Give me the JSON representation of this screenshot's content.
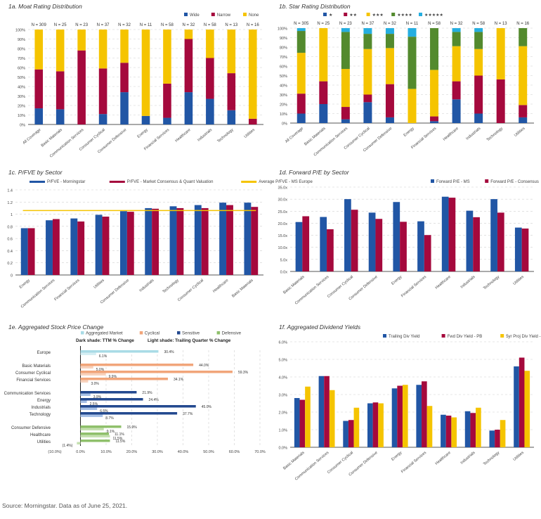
{
  "footer": "Source: Morningstar. Data as of June 25, 2021.",
  "colors": {
    "blue": "#2156a5",
    "red": "#a5093d",
    "yellow": "#f5c400",
    "green": "#538a2e",
    "cyan": "#25aee0",
    "ltblue": "#a9dbe6",
    "orange": "#f1a57a",
    "navy": "#23498f",
    "ltnavy": "#a6c0e6",
    "dgreen": "#8fc06b",
    "lgreen": "#c5e0b0",
    "grid": "#d0d0d0",
    "axis": "#777777"
  },
  "chart_data": [
    {
      "id": "1a",
      "type": "bar",
      "stacked": true,
      "title": "1a. Moat Rating Distribution",
      "categories": [
        "All Coverage",
        "Basic Materials",
        "Communication Services",
        "Consumer Cyclical",
        "Consumer Defensive",
        "Energy",
        "Financial Services",
        "Healthcare",
        "Industrials",
        "Technology",
        "Utilities"
      ],
      "n_labels": [
        "N = 309",
        "N = 25",
        "N = 23",
        "N = 37",
        "N = 32",
        "N = 11",
        "N = 58",
        "N = 32",
        "N = 58",
        "N = 13",
        "N = 16"
      ],
      "series": [
        {
          "name": "Wide",
          "color": "#2156a5",
          "values": [
            17,
            16,
            0,
            11,
            34,
            9,
            7,
            34,
            27,
            15,
            0
          ]
        },
        {
          "name": "Narrow",
          "color": "#a5093d",
          "values": [
            41,
            40,
            78,
            48,
            31,
            0,
            36,
            56,
            43,
            39,
            6
          ]
        },
        {
          "name": "None",
          "color": "#f5c400",
          "values": [
            42,
            44,
            22,
            41,
            35,
            91,
            57,
            10,
            30,
            46,
            94
          ]
        }
      ],
      "yticks": [
        "0%",
        "10%",
        "20%",
        "30%",
        "40%",
        "50%",
        "60%",
        "70%",
        "80%",
        "90%",
        "100%"
      ],
      "ylim": [
        0,
        100
      ],
      "legend": "top-right"
    },
    {
      "id": "1b",
      "type": "bar",
      "stacked": true,
      "title": "1b. Star Rating Distribution",
      "categories": [
        "All Coverage",
        "Basic Materials",
        "Communication Services",
        "Consumer Cyclical",
        "Consumer Defensive",
        "Energy",
        "Financial Services",
        "Healthcare",
        "Industrials",
        "Technology",
        "Utilities"
      ],
      "n_labels": [
        "N = 305",
        "N = 25",
        "N = 23",
        "N = 37",
        "N = 32",
        "N = 11",
        "N = 58",
        "N = 32",
        "N = 58",
        "N = 13",
        "N = 16"
      ],
      "series": [
        {
          "name": "★",
          "color": "#2156a5",
          "values": [
            10,
            20,
            4,
            22,
            6,
            0,
            2,
            25,
            10,
            0,
            6
          ]
        },
        {
          "name": "★★",
          "color": "#a5093d",
          "values": [
            21,
            24,
            13,
            8,
            35,
            0,
            5,
            19,
            40,
            46,
            13
          ]
        },
        {
          "name": "★★★",
          "color": "#f5c400",
          "values": [
            43,
            56,
            40,
            48,
            38,
            36,
            49,
            37,
            28,
            54,
            62
          ]
        },
        {
          "name": "★★★★",
          "color": "#538a2e",
          "values": [
            23,
            0,
            39,
            16,
            15,
            55,
            44,
            15,
            18,
            0,
            19
          ]
        },
        {
          "name": "★★★★★",
          "color": "#25aee0",
          "values": [
            3,
            0,
            4,
            6,
            6,
            9,
            0,
            4,
            4,
            0,
            0
          ]
        }
      ],
      "yticks": [
        "0%",
        "10%",
        "20%",
        "30%",
        "40%",
        "50%",
        "60%",
        "70%",
        "80%",
        "90%",
        "100%"
      ],
      "ylim": [
        0,
        100
      ],
      "legend": "top"
    },
    {
      "id": "1c",
      "type": "bar",
      "title": "1c. P/FVE by Sector",
      "categories": [
        "Energy",
        "Communication Services",
        "Financial Services",
        "Utilities",
        "Consumer Defensive",
        "Industrials",
        "Technology",
        "Consumer Cyclical",
        "Healthcare",
        "Basic Materials"
      ],
      "series": [
        {
          "name": "P/FVE - Morningstar",
          "color": "#2156a5",
          "values": [
            0.77,
            0.9,
            0.93,
            0.99,
            1.05,
            1.1,
            1.13,
            1.15,
            1.19,
            1.19
          ]
        },
        {
          "name": "P/FVE - Market Consensus & Quant Valuation",
          "color": "#a5093d",
          "values": [
            0.77,
            0.92,
            0.88,
            0.96,
            1.04,
            1.09,
            1.1,
            1.1,
            1.15,
            1.12
          ]
        }
      ],
      "reference_line": {
        "name": "Average P/FVE - MS Europe",
        "color": "#f5c400",
        "value": 1.06
      },
      "yticks": [
        "0",
        "0.2",
        "0.4",
        "0.6",
        "0.8",
        "1",
        "1.2",
        "1.4"
      ],
      "ylim": [
        0,
        1.4
      ],
      "legend": "top"
    },
    {
      "id": "1d",
      "type": "bar",
      "title": "1d. Forward P/E by Sector",
      "categories": [
        "Basic Materials",
        "Communication Services",
        "Consumer Cyclical",
        "Consumer Defensive",
        "Energy",
        "Financial Services",
        "Healthcare",
        "Industrials",
        "Technology",
        "Utilities"
      ],
      "series": [
        {
          "name": "Forward P/E - MS",
          "color": "#2156a5",
          "values": [
            20.5,
            22.6,
            30.0,
            24.4,
            28.8,
            20.8,
            31.0,
            25.2,
            30.0,
            18.2
          ]
        },
        {
          "name": "Forward P/E - Consensus",
          "color": "#a5093d",
          "values": [
            22.9,
            17.5,
            25.6,
            21.8,
            20.6,
            15.1,
            30.6,
            22.5,
            24.4,
            17.8
          ]
        }
      ],
      "yticks": [
        "0.0x",
        "5.0x",
        "10.0x",
        "15.0x",
        "20.0x",
        "25.0x",
        "30.0x",
        "35.0x"
      ],
      "ylim": [
        0,
        35
      ],
      "legend": "top-right"
    },
    {
      "id": "1e",
      "type": "bar",
      "orientation": "horizontal",
      "title": "1e. Aggregated Stock Price Change",
      "subtitle_dark": "Dark shade: TTM % Change",
      "subtitle_light": "Light shade: Trailing Quarter % Change",
      "legend_entries": [
        {
          "name": "Aggregated Market",
          "color": "#a9dbe6"
        },
        {
          "name": "Cyclical",
          "color": "#f1a57a"
        },
        {
          "name": "Sensitive",
          "color": "#23498f"
        },
        {
          "name": "Defensive",
          "color": "#8fc06b"
        }
      ],
      "groups": [
        {
          "group": "Aggregated Market",
          "items": [
            {
              "label": "Europe",
              "ttm": 30.4,
              "quarter": 6.1
            }
          ]
        },
        {
          "group": "Cyclical",
          "items": [
            {
              "label": "Basic Materials",
              "ttm": 44.0,
              "quarter": 5.0
            },
            {
              "label": "Consumer Cyclical",
              "ttm": 59.3,
              "quarter": 9.9
            },
            {
              "label": "Financial Services",
              "ttm": 34.1,
              "quarter": 3.0
            }
          ]
        },
        {
          "group": "Sensitive",
          "items": [
            {
              "label": "Communication Services",
              "ttm": 21.9,
              "quarter": 3.9
            },
            {
              "label": "Energy",
              "ttm": 24.4,
              "quarter": 2.5
            },
            {
              "label": "Industrials",
              "ttm": 45.0,
              "quarter": 6.5
            },
            {
              "label": "Technology",
              "ttm": 37.7,
              "quarter": 8.7
            }
          ]
        },
        {
          "group": "Defensive",
          "items": [
            {
              "label": "Consumer Defensive",
              "ttm": 15.9,
              "quarter": 9.1
            },
            {
              "label": "Healthcare",
              "ttm": 11.1,
              "quarter": 11.5
            },
            {
              "label": "Utilities",
              "ttm": 11.5,
              "quarter": -1.4
            }
          ]
        }
      ],
      "xticks": [
        "(10.0%)",
        "0.0%",
        "10.0%",
        "20.0%",
        "30.0%",
        "40.0%",
        "50.0%",
        "60.0%",
        "70.0%"
      ],
      "xlim": [
        -10,
        70
      ],
      "legend": "top"
    },
    {
      "id": "1f",
      "type": "bar",
      "title": "1f. Aggregated Dividend Yields",
      "categories": [
        "Basic Materials",
        "Communication Services",
        "Consumer Cyclical",
        "Consumer Defensive",
        "Energy",
        "Financial Services",
        "Healthcare",
        "Industrials",
        "Technology",
        "Utilities"
      ],
      "series": [
        {
          "name": "Trailing Div Yield",
          "color": "#2156a5",
          "values": [
            2.8,
            4.05,
            1.5,
            2.5,
            3.35,
            3.55,
            1.85,
            2.05,
            0.95,
            4.6
          ]
        },
        {
          "name": "Fwd Div Yield - PB",
          "color": "#a5093d",
          "values": [
            2.7,
            4.05,
            1.55,
            2.55,
            3.5,
            3.75,
            1.8,
            1.95,
            1.0,
            5.1
          ]
        },
        {
          "name": "5yr Proj Div Yield - DB",
          "color": "#f5c400",
          "values": [
            3.45,
            3.25,
            2.25,
            2.5,
            3.55,
            2.35,
            1.7,
            2.25,
            1.55,
            4.35
          ]
        }
      ],
      "yticks": [
        "0.0%",
        "1.0%",
        "2.0%",
        "3.0%",
        "4.0%",
        "5.0%",
        "6.0%"
      ],
      "ylim": [
        0,
        6
      ],
      "legend": "top-right"
    }
  ]
}
